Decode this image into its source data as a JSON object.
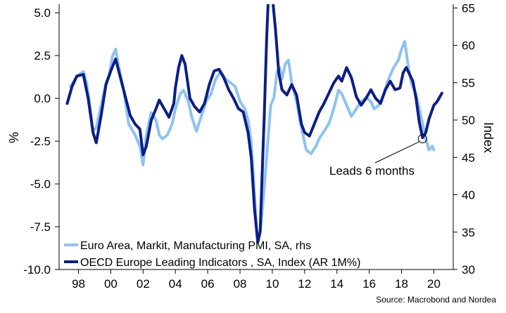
{
  "chart_data": {
    "type": "line",
    "title": "",
    "ylabel_left": "%",
    "ylabel_right": "Index",
    "x_range": [
      1996.8,
      2021.2
    ],
    "ylim_left": [
      -10.0,
      5.5
    ],
    "ylim_right": [
      30,
      65.5
    ],
    "x_ticks": [
      {
        "value": 1998,
        "label": "98"
      },
      {
        "value": 2000,
        "label": "00"
      },
      {
        "value": 2002,
        "label": "02"
      },
      {
        "value": 2004,
        "label": "04"
      },
      {
        "value": 2006,
        "label": "06"
      },
      {
        "value": 2008,
        "label": "08"
      },
      {
        "value": 2010,
        "label": "10"
      },
      {
        "value": 2012,
        "label": "12"
      },
      {
        "value": 2014,
        "label": "14"
      },
      {
        "value": 2016,
        "label": "16"
      },
      {
        "value": 2018,
        "label": "18"
      },
      {
        "value": 2020,
        "label": "20"
      }
    ],
    "y_ticks_left": [
      {
        "value": 5.0,
        "label": "5.0"
      },
      {
        "value": 2.5,
        "label": "2.5"
      },
      {
        "value": 0.0,
        "label": "0.0"
      },
      {
        "value": -2.5,
        "label": "-2.5"
      },
      {
        "value": -5.0,
        "label": "-5.0"
      },
      {
        "value": -7.5,
        "label": "-7.5"
      },
      {
        "value": -10.0,
        "label": "-10.0"
      }
    ],
    "y_ticks_right": [
      {
        "value": 65,
        "label": "65"
      },
      {
        "value": 60,
        "label": "60"
      },
      {
        "value": 55,
        "label": "55"
      },
      {
        "value": 50,
        "label": "50"
      },
      {
        "value": 45,
        "label": "45"
      },
      {
        "value": 40,
        "label": "40"
      },
      {
        "value": 35,
        "label": "35"
      },
      {
        "value": 30,
        "label": "30"
      }
    ],
    "grid": false,
    "legend_position": "bottom-left",
    "series": [
      {
        "name": "Euro Area, Markit, Manufacturing PMI, SA, rhs",
        "axis": "right",
        "color": "#8ec3f0",
        "x": [
          1997.5,
          1997.8,
          1998.0,
          1998.3,
          1998.5,
          1998.7,
          1998.9,
          1999.1,
          1999.4,
          1999.7,
          1999.9,
          2000.1,
          2000.3,
          2000.5,
          2000.8,
          2001.1,
          2001.5,
          2001.8,
          2002.0,
          2002.2,
          2002.5,
          2002.8,
          2003.0,
          2003.2,
          2003.5,
          2003.8,
          2004.0,
          2004.3,
          2004.5,
          2004.8,
          2005.0,
          2005.3,
          2005.6,
          2005.9,
          2006.2,
          2006.5,
          2006.8,
          2007.1,
          2007.4,
          2007.7,
          2008.0,
          2008.3,
          2008.5,
          2008.7,
          2008.9,
          2009.05,
          2009.15,
          2009.3,
          2009.5,
          2009.7,
          2009.9,
          2010.1,
          2010.3,
          2010.45,
          2010.6,
          2010.8,
          2011.0,
          2011.2,
          2011.5,
          2011.7,
          2011.9,
          2012.1,
          2012.4,
          2012.7,
          2012.9,
          2013.2,
          2013.5,
          2013.8,
          2014.1,
          2014.3,
          2014.6,
          2014.9,
          2015.2,
          2015.5,
          2015.8,
          2016.1,
          2016.3,
          2016.6,
          2016.9,
          2017.2,
          2017.5,
          2017.8,
          2018.0,
          2018.2,
          2018.4,
          2018.6,
          2018.9,
          2019.2,
          2019.5,
          2019.7,
          2019.9,
          2020.0
        ],
        "values": [
          54.5,
          55.5,
          56.0,
          56.5,
          55.0,
          52.0,
          48.5,
          49.0,
          52.0,
          55.0,
          56.0,
          58.5,
          59.5,
          57.0,
          54.0,
          49.5,
          48.0,
          46.5,
          44.0,
          48.0,
          51.0,
          50.0,
          48.0,
          47.5,
          48.0,
          49.5,
          51.5,
          53.5,
          54.0,
          52.5,
          50.5,
          48.5,
          50.5,
          52.5,
          53.5,
          55.5,
          56.5,
          55.5,
          55.0,
          54.5,
          52.5,
          51.5,
          50.0,
          47.0,
          40.0,
          34.5,
          34.0,
          36.0,
          41.0,
          46.5,
          52.0,
          53.0,
          56.5,
          57.0,
          55.5,
          57.5,
          58.0,
          55.0,
          52.5,
          50.0,
          48.0,
          46.0,
          45.5,
          46.5,
          47.5,
          48.5,
          49.5,
          51.5,
          54.0,
          53.5,
          52.0,
          50.5,
          51.5,
          52.5,
          53.0,
          52.5,
          51.5,
          52.0,
          53.5,
          55.5,
          57.0,
          58.0,
          59.5,
          60.5,
          57.5,
          55.0,
          53.5,
          50.5,
          47.5,
          46.0,
          46.5,
          46.0
        ]
      },
      {
        "name": "OECD Europe Leading Indicators , SA, Index (AR 1M%)",
        "axis": "left",
        "color": "#0c1e86",
        "x": [
          1997.3,
          1997.6,
          1997.9,
          1998.3,
          1998.6,
          1998.9,
          1999.1,
          1999.4,
          1999.7,
          2000.0,
          2000.3,
          2000.6,
          2000.9,
          2001.2,
          2001.5,
          2001.8,
          2002.0,
          2002.2,
          2002.5,
          2002.8,
          2003.0,
          2003.3,
          2003.6,
          2003.9,
          2004.0,
          2004.2,
          2004.4,
          2004.6,
          2004.9,
          2005.2,
          2005.5,
          2005.8,
          2006.1,
          2006.4,
          2006.7,
          2007.0,
          2007.3,
          2007.6,
          2007.9,
          2008.2,
          2008.5,
          2008.7,
          2008.9,
          2009.1,
          2009.25,
          2009.35,
          2009.5,
          2009.65,
          2009.8,
          2009.95,
          2010.2,
          2010.4,
          2010.6,
          2010.9,
          2011.2,
          2011.5,
          2011.8,
          2012.0,
          2012.3,
          2012.6,
          2012.9,
          2013.2,
          2013.5,
          2013.8,
          2014.1,
          2014.3,
          2014.6,
          2014.9,
          2015.2,
          2015.5,
          2015.8,
          2016.1,
          2016.4,
          2016.7,
          2017.0,
          2017.3,
          2017.6,
          2017.9,
          2018.1,
          2018.3,
          2018.5,
          2018.7,
          2018.9,
          2019.1,
          2019.3,
          2019.5,
          2019.7,
          2020.0,
          2020.2,
          2020.5
        ],
        "values": [
          -0.3,
          0.7,
          1.3,
          1.4,
          0.0,
          -2.0,
          -2.6,
          -1.0,
          0.8,
          1.6,
          2.3,
          1.2,
          0.1,
          -1.0,
          -1.5,
          -1.8,
          -3.3,
          -2.8,
          -1.3,
          -0.6,
          -0.1,
          -0.6,
          -1.1,
          -0.3,
          0.6,
          1.8,
          2.5,
          2.0,
          0.0,
          -0.5,
          -0.8,
          -0.3,
          0.8,
          1.6,
          1.7,
          1.2,
          0.5,
          0.0,
          -0.6,
          -0.8,
          -2.0,
          -3.5,
          -6.5,
          -8.4,
          -7.8,
          -5.0,
          -1.0,
          3.5,
          7.0,
          6.5,
          4.0,
          1.5,
          0.5,
          0.2,
          0.8,
          0.2,
          -1.5,
          -2.0,
          -2.2,
          -1.5,
          -0.8,
          -0.3,
          0.3,
          0.9,
          1.3,
          1.0,
          1.8,
          1.2,
          0.1,
          -0.4,
          0.0,
          0.5,
          0.0,
          -0.3,
          0.5,
          1.0,
          0.5,
          0.6,
          1.5,
          1.8,
          1.4,
          1.0,
          0.0,
          -1.4,
          -2.3,
          -2.0,
          -1.2,
          -0.4,
          -0.2,
          0.3
        ]
      }
    ],
    "annotation": {
      "text": "Leads 6 months",
      "x": 2019.3,
      "y_right": 47.5
    },
    "source": "Source: Macrobond and Nordea"
  }
}
